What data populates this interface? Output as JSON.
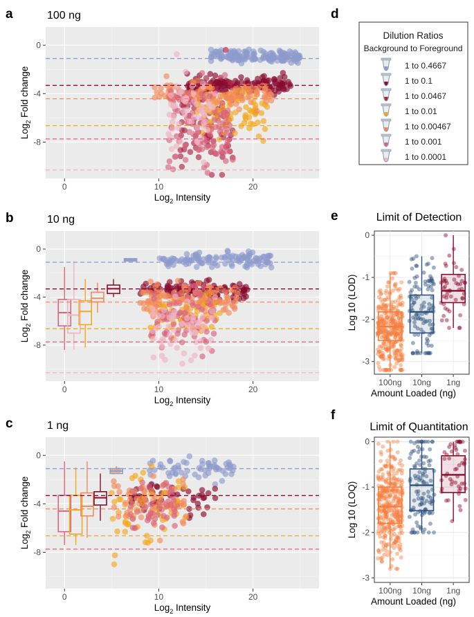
{
  "panels": {
    "a": {
      "letter": "a",
      "title": "100 ng"
    },
    "b": {
      "letter": "b",
      "title": "10 ng"
    },
    "c": {
      "letter": "c",
      "title": "1 ng"
    },
    "d": {
      "letter": "d"
    },
    "e": {
      "letter": "e"
    },
    "f": {
      "letter": "f"
    }
  },
  "scatter_axes": {
    "xlabel": "Log",
    "xlabel_sub": "2",
    "xlabel_rest": " Intensity",
    "ylabel": "Log",
    "ylabel_sub": "2",
    "ylabel_rest": " Fold change"
  },
  "legend": {
    "title": "Dilution Ratios",
    "subtitle": "Background to Foreground",
    "items": [
      {
        "label": "1 to 0.4667",
        "color": "#8e9bcc"
      },
      {
        "label": "1 to 0.1",
        "color": "#8b0a2f"
      },
      {
        "label": "1 to 0.0467",
        "color": "#b2254a"
      },
      {
        "label": "1 to 0.01",
        "color": "#f4a81c"
      },
      {
        "label": "1 to 0.00467",
        "color": "#f28a5a"
      },
      {
        "label": "1 to 0.001",
        "color": "#d9647e"
      },
      {
        "label": "1 to 0.0001",
        "color": "#f0b3c4"
      }
    ]
  },
  "chart_data": [
    {
      "id": "a",
      "type": "scatter",
      "title": "100 ng",
      "xlabel": "Log2 Intensity",
      "ylabel": "Log2 Fold change",
      "xlim": [
        -2,
        27
      ],
      "ylim": [
        -11,
        1.5
      ],
      "xticks": [
        0,
        10,
        20
      ],
      "yticks": [
        0,
        -4,
        -8
      ],
      "reference_lines": [
        {
          "y": -1.1,
          "color": "#8e9bcc"
        },
        {
          "y": -3.32,
          "color": "#8b0a2f"
        },
        {
          "y": -4.42,
          "color": "#f28a5a"
        },
        {
          "y": -6.64,
          "color": "#f4a81c"
        },
        {
          "y": -7.74,
          "color": "#d9647e"
        },
        {
          "y": -10.3,
          "color": "#f0b3c4"
        }
      ],
      "series": [
        {
          "name": "1 to 0.4667",
          "color": "#8e9bcc",
          "x_range": [
            15.5,
            25
          ],
          "y_center": -0.9,
          "y_spread": 0.25,
          "n": 140
        },
        {
          "name": "1 to 0.1",
          "color": "#8b0a2f",
          "x_range": [
            13,
            24
          ],
          "y_center": -3.3,
          "y_spread": 0.35,
          "n": 150
        },
        {
          "name": "1 to 0.0467",
          "color": "#b2254a",
          "x_range": [
            12,
            18
          ],
          "y_center": -6.5,
          "y_spread": 2.2,
          "n": 90
        },
        {
          "name": "1 to 0.01",
          "color": "#f4a81c",
          "x_range": [
            14,
            21.5
          ],
          "y_center": -5.6,
          "y_spread": 0.9,
          "n": 90
        },
        {
          "name": "1 to 0.00467",
          "color": "#f28a5a",
          "x_range": [
            9.5,
            22
          ],
          "y_center": -4.1,
          "y_spread": 0.5,
          "n": 110
        },
        {
          "name": "1 to 0.001",
          "color": "#d9647e",
          "x_range": [
            11,
            18
          ],
          "y_center": -6.8,
          "y_spread": 1.8,
          "n": 90
        },
        {
          "name": "1 to 0.0001",
          "color": "#f0b3c4",
          "x_range": [
            11,
            16
          ],
          "y_center": -5.8,
          "y_spread": 1.6,
          "n": 60
        }
      ]
    },
    {
      "id": "b",
      "type": "scatter",
      "title": "10 ng",
      "xlabel": "Log2 Intensity",
      "ylabel": "Log2 Fold change",
      "xlim": [
        -2,
        27
      ],
      "ylim": [
        -11,
        1.5
      ],
      "xticks": [
        0,
        10,
        20
      ],
      "yticks": [
        0,
        -4,
        -8
      ],
      "reference_lines": [
        {
          "y": -1.1,
          "color": "#8e9bcc"
        },
        {
          "y": -3.32,
          "color": "#8b0a2f"
        },
        {
          "y": -4.42,
          "color": "#f28a5a"
        },
        {
          "y": -6.64,
          "color": "#f4a81c"
        },
        {
          "y": -7.74,
          "color": "#d9647e"
        },
        {
          "y": -10.3,
          "color": "#f0b3c4"
        }
      ],
      "boxes": [
        {
          "x": 0,
          "q1": -6.4,
          "median": -5.3,
          "q3": -4.2,
          "lo": -8.4,
          "hi": -1.5,
          "color": "#d9647e"
        },
        {
          "x": 1,
          "q1": -7.0,
          "median": -5.5,
          "q3": -4.2,
          "lo": -8.4,
          "hi": -1.0,
          "color": "#f0b3c4"
        },
        {
          "x": 2.2,
          "q1": -6.3,
          "median": -5.2,
          "q3": -4.3,
          "lo": -8.2,
          "hi": -2.5,
          "color": "#f4a81c"
        },
        {
          "x": 3.5,
          "q1": -4.4,
          "median": -4.1,
          "q3": -3.6,
          "lo": -5.3,
          "hi": -2.8,
          "color": "#f28a5a"
        },
        {
          "x": 5.2,
          "q1": -3.7,
          "median": -3.3,
          "q3": -3.0,
          "lo": -4.0,
          "hi": -2.5,
          "color": "#8b0a2f"
        },
        {
          "x": 7,
          "q1": -1.0,
          "median": -0.9,
          "q3": -0.8,
          "lo": -1.0,
          "hi": -0.75,
          "color": "#8e9bcc"
        }
      ],
      "series": [
        {
          "name": "1 to 0.4667",
          "color": "#8e9bcc",
          "x_range": [
            10,
            22
          ],
          "y_center": -0.9,
          "y_spread": 0.3,
          "n": 120
        },
        {
          "name": "1 to 0.1",
          "color": "#8b0a2f",
          "x_range": [
            8,
            19.5
          ],
          "y_center": -3.4,
          "y_spread": 0.35,
          "n": 120
        },
        {
          "name": "1 to 0.01",
          "color": "#f4a81c",
          "x_range": [
            9,
            16.5
          ],
          "y_center": -5.5,
          "y_spread": 1.0,
          "n": 80
        },
        {
          "name": "1 to 0.00467",
          "color": "#f28a5a",
          "x_range": [
            8,
            18.5
          ],
          "y_center": -4.2,
          "y_spread": 0.7,
          "n": 110
        },
        {
          "name": "1 to 0.001",
          "color": "#d9647e",
          "x_range": [
            9,
            16
          ],
          "y_center": -5.8,
          "y_spread": 1.2,
          "n": 80
        },
        {
          "name": "1 to 0.0001",
          "color": "#f0b3c4",
          "x_range": [
            9,
            16
          ],
          "y_center": -6.8,
          "y_spread": 1.3,
          "n": 60
        }
      ]
    },
    {
      "id": "c",
      "type": "scatter",
      "title": "1 ng",
      "xlabel": "Log2 Intensity",
      "ylabel": "Log2 Fold change",
      "xlim": [
        -2,
        27
      ],
      "ylim": [
        -11,
        1.5
      ],
      "xticks": [
        0,
        10,
        20
      ],
      "yticks": [
        0,
        -4,
        -8
      ],
      "reference_lines": [
        {
          "y": -1.1,
          "color": "#8e9bcc"
        },
        {
          "y": -3.32,
          "color": "#8b0a2f"
        },
        {
          "y": -4.42,
          "color": "#f28a5a"
        },
        {
          "y": -6.64,
          "color": "#f4a81c"
        },
        {
          "y": -7.74,
          "color": "#d9647e"
        }
      ],
      "boxes": [
        {
          "x": 0,
          "q1": -6.3,
          "median": -4.6,
          "q3": -3.3,
          "lo": -7.4,
          "hi": -0.5,
          "color": "#d9647e"
        },
        {
          "x": 1.2,
          "q1": -6.5,
          "median": -4.5,
          "q3": -3.3,
          "lo": -7.4,
          "hi": -1.0,
          "color": "#f4a81c"
        },
        {
          "x": 2.4,
          "q1": -5.0,
          "median": -4.2,
          "q3": -3.1,
          "lo": -6.8,
          "hi": -0.5,
          "color": "#f28a5a"
        },
        {
          "x": 3.8,
          "q1": -4.1,
          "median": -3.5,
          "q3": -3.0,
          "lo": -5.4,
          "hi": -1.5,
          "color": "#8b0a2f"
        },
        {
          "x": 5.5,
          "q1": -1.5,
          "median": -1.3,
          "q3": -1.1,
          "lo": -1.5,
          "hi": -0.9,
          "color": "#8e9bcc"
        }
      ],
      "series": [
        {
          "name": "1 to 0.4667",
          "color": "#8e9bcc",
          "x_range": [
            9,
            18
          ],
          "y_center": -1.2,
          "y_spread": 0.5,
          "n": 60
        },
        {
          "name": "1 to 0.1",
          "color": "#8b0a2f",
          "x_range": [
            7,
            16
          ],
          "y_center": -3.6,
          "y_spread": 0.6,
          "n": 50
        },
        {
          "name": "1 to 0.01",
          "color": "#f4a81c",
          "x_range": [
            5,
            13
          ],
          "y_center": -4.0,
          "y_spread": 1.5,
          "n": 60
        },
        {
          "name": "1 to 0.00467",
          "color": "#f28a5a",
          "x_range": [
            5,
            13
          ],
          "y_center": -3.8,
          "y_spread": 1.1,
          "n": 60
        },
        {
          "name": "1 to 0.001",
          "color": "#d9647e",
          "x_range": [
            7,
            12
          ],
          "y_center": -4.5,
          "y_spread": 1.2,
          "n": 40
        }
      ]
    },
    {
      "id": "e",
      "type": "box",
      "title": "Limit of Detection",
      "xlabel": "Amount Loaded (ng)",
      "ylabel": "Log 10 (LOD)",
      "ylim": [
        -3.3,
        0.1
      ],
      "yticks": [
        0,
        -1,
        -2,
        -3
      ],
      "categories": [
        "100ng",
        "10ng",
        "1ng"
      ],
      "boxes": [
        {
          "category": "100ng",
          "color": "#f47f3e",
          "q1": -2.5,
          "median": -2.17,
          "q3": -1.82,
          "lo": -3.2,
          "hi": -0.9,
          "n": 320
        },
        {
          "category": "10ng",
          "color": "#2c4f7c",
          "q1": -2.32,
          "median": -1.82,
          "q3": -1.42,
          "lo": -2.8,
          "hi": -0.5,
          "n": 110
        },
        {
          "category": "1ng",
          "color": "#8b0a2f",
          "q1": -1.6,
          "median": -1.32,
          "q3": -0.93,
          "lo": -2.2,
          "hi": 0.0,
          "n": 50
        }
      ]
    },
    {
      "id": "f",
      "type": "box",
      "title": "Limit of Quantitation",
      "xlabel": "Amount Loaded (ng)",
      "ylabel": "Log 10 (LOQ)",
      "ylim": [
        -3.1,
        0.1
      ],
      "yticks": [
        0,
        -1,
        -2,
        -3
      ],
      "categories": [
        "100ng",
        "10ng",
        "1ng"
      ],
      "boxes": [
        {
          "category": "100ng",
          "color": "#f47f3e",
          "q1": -1.8,
          "median": -1.43,
          "q3": -1.0,
          "lo": -2.8,
          "hi": 0.0,
          "n": 320
        },
        {
          "category": "10ng",
          "color": "#2c4f7c",
          "q1": -1.52,
          "median": -0.96,
          "q3": -0.6,
          "lo": -2.0,
          "hi": 0.0,
          "n": 110
        },
        {
          "category": "1ng",
          "color": "#8b0a2f",
          "q1": -1.12,
          "median": -0.73,
          "q3": -0.31,
          "lo": -1.75,
          "hi": 0.0,
          "n": 50
        }
      ]
    }
  ]
}
